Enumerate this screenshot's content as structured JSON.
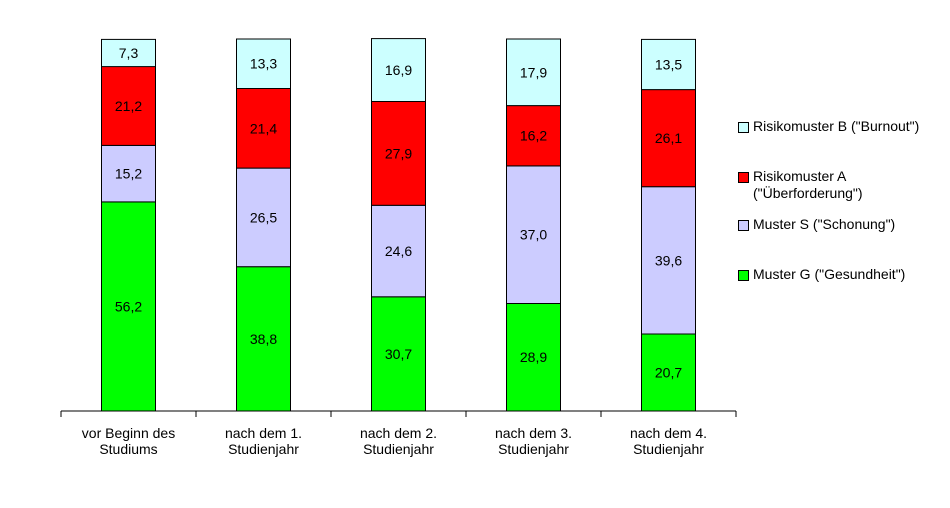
{
  "chart_data": {
    "type": "bar",
    "stacked": true,
    "categories": [
      "vor Beginn des\nStudiums",
      "nach dem 1.\nStudienjahr",
      "nach dem 2.\nStudienjahr",
      "nach dem 3.\nStudienjahr",
      "nach dem 4.\nStudienjahr"
    ],
    "series": [
      {
        "name": "Muster G (\"Gesundheit\")",
        "color": "#00ff00",
        "values": [
          56.2,
          38.8,
          30.7,
          28.9,
          20.7
        ],
        "labels": [
          "56,2",
          "38,8",
          "30,7",
          "28,9",
          "20,7"
        ]
      },
      {
        "name": "Muster S (\"Schonung\")",
        "color": "#ccccff",
        "values": [
          15.2,
          26.5,
          24.6,
          37.0,
          39.6
        ],
        "labels": [
          "15,2",
          "26,5",
          "24,6",
          "37,0",
          "39,6"
        ]
      },
      {
        "name": "Risikomuster A\n(\"Überforderung\")",
        "color": "#ff0000",
        "values": [
          21.2,
          21.4,
          27.9,
          16.2,
          26.1
        ],
        "labels": [
          "21,2",
          "21,4",
          "27,9",
          "16,2",
          "26,1"
        ]
      },
      {
        "name": "Risikomuster B (\"Burnout\")",
        "color": "#ccffff",
        "values": [
          7.3,
          13.3,
          16.9,
          17.9,
          13.5
        ],
        "labels": [
          "7,3",
          "13,3",
          "16,9",
          "17,9",
          "13,5"
        ]
      }
    ],
    "legend_order": [
      3,
      2,
      1,
      0
    ],
    "legend_position": "right",
    "ylim": [
      0,
      100
    ],
    "grid": false
  }
}
